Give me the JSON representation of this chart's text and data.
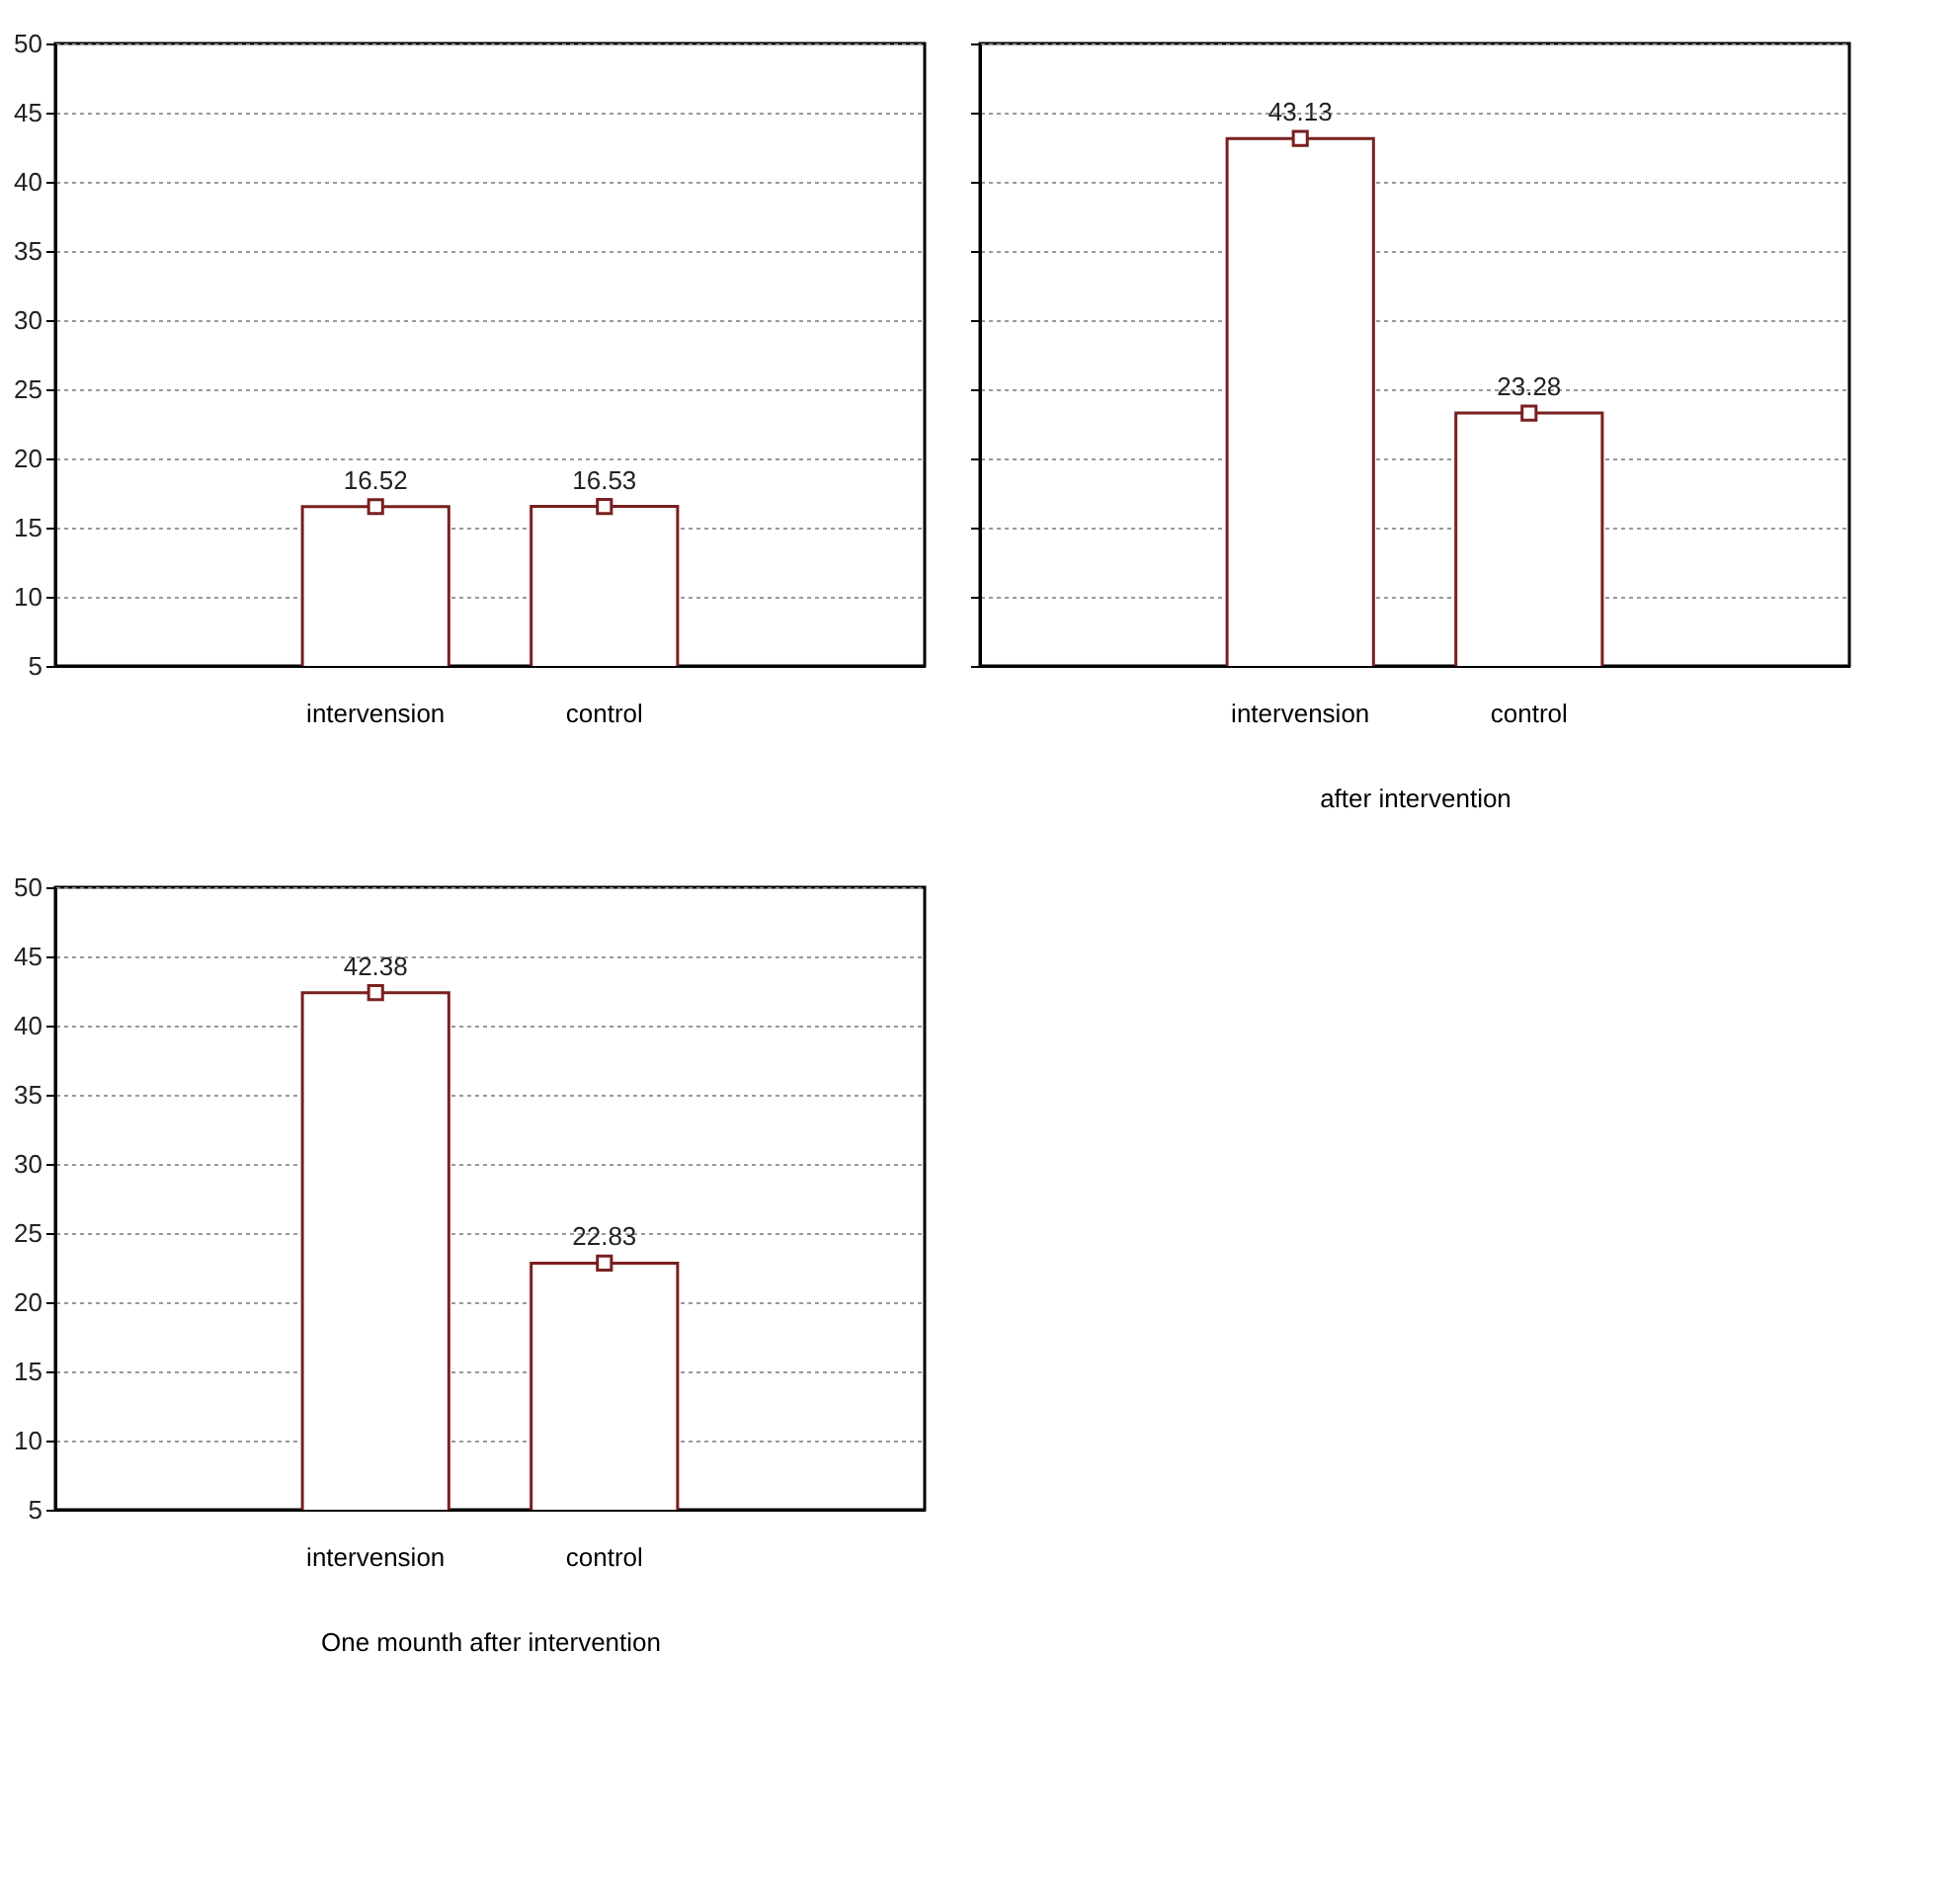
{
  "chart_data": [
    {
      "type": "bar",
      "categories": [
        null,
        "intervension",
        "control",
        null
      ],
      "ylim": [
        5,
        50
      ],
      "yticks": [
        5,
        10,
        15,
        20,
        25,
        30,
        35,
        40,
        45,
        50
      ],
      "grid": "y",
      "series": [
        {
          "color": "#ffffff",
          "values": [
            null,
            16.52,
            16.53,
            null
          ],
          "value_labels": [
            null,
            "16.52",
            "16.53",
            null
          ]
        },
        {
          "type": "scatter",
          "marker": "square",
          "color": "#7a1f1f",
          "values": [
            null,
            16.52,
            16.53,
            null
          ]
        }
      ]
    },
    {
      "type": "bar",
      "categories": [
        null,
        "intervension",
        "control",
        null
      ],
      "xlabel": "after intervention",
      "ylim": [
        5,
        50
      ],
      "yticks": [
        5,
        10,
        15,
        20,
        25,
        30,
        35,
        40,
        45,
        50
      ],
      "grid": "y",
      "tick_labels": "x",
      "series": [
        {
          "color": "#ffffff",
          "values": [
            null,
            43.13,
            23.28,
            null
          ],
          "value_labels": [
            null,
            "43.13",
            "23.28",
            null
          ]
        },
        {
          "type": "scatter",
          "marker": "square",
          "color": "#7a1f1f",
          "values": [
            null,
            43.13,
            23.28,
            null
          ]
        }
      ]
    },
    {
      "type": "bar",
      "categories": [
        null,
        "intervension",
        "control",
        null
      ],
      "xlabel": "One mounth after intervention",
      "ylim": [
        5,
        50
      ],
      "yticks": [
        5,
        10,
        15,
        20,
        25,
        30,
        35,
        40,
        45,
        50
      ],
      "grid": "y",
      "series": [
        {
          "color": "#ffffff",
          "values": [
            null,
            42.38,
            22.83,
            null
          ],
          "value_labels": [
            null,
            "42.38",
            "22.83",
            null
          ]
        },
        {
          "type": "scatter",
          "marker": "square",
          "color": "#7a1f1f",
          "values": [
            null,
            42.38,
            22.83,
            null
          ]
        }
      ]
    }
  ]
}
